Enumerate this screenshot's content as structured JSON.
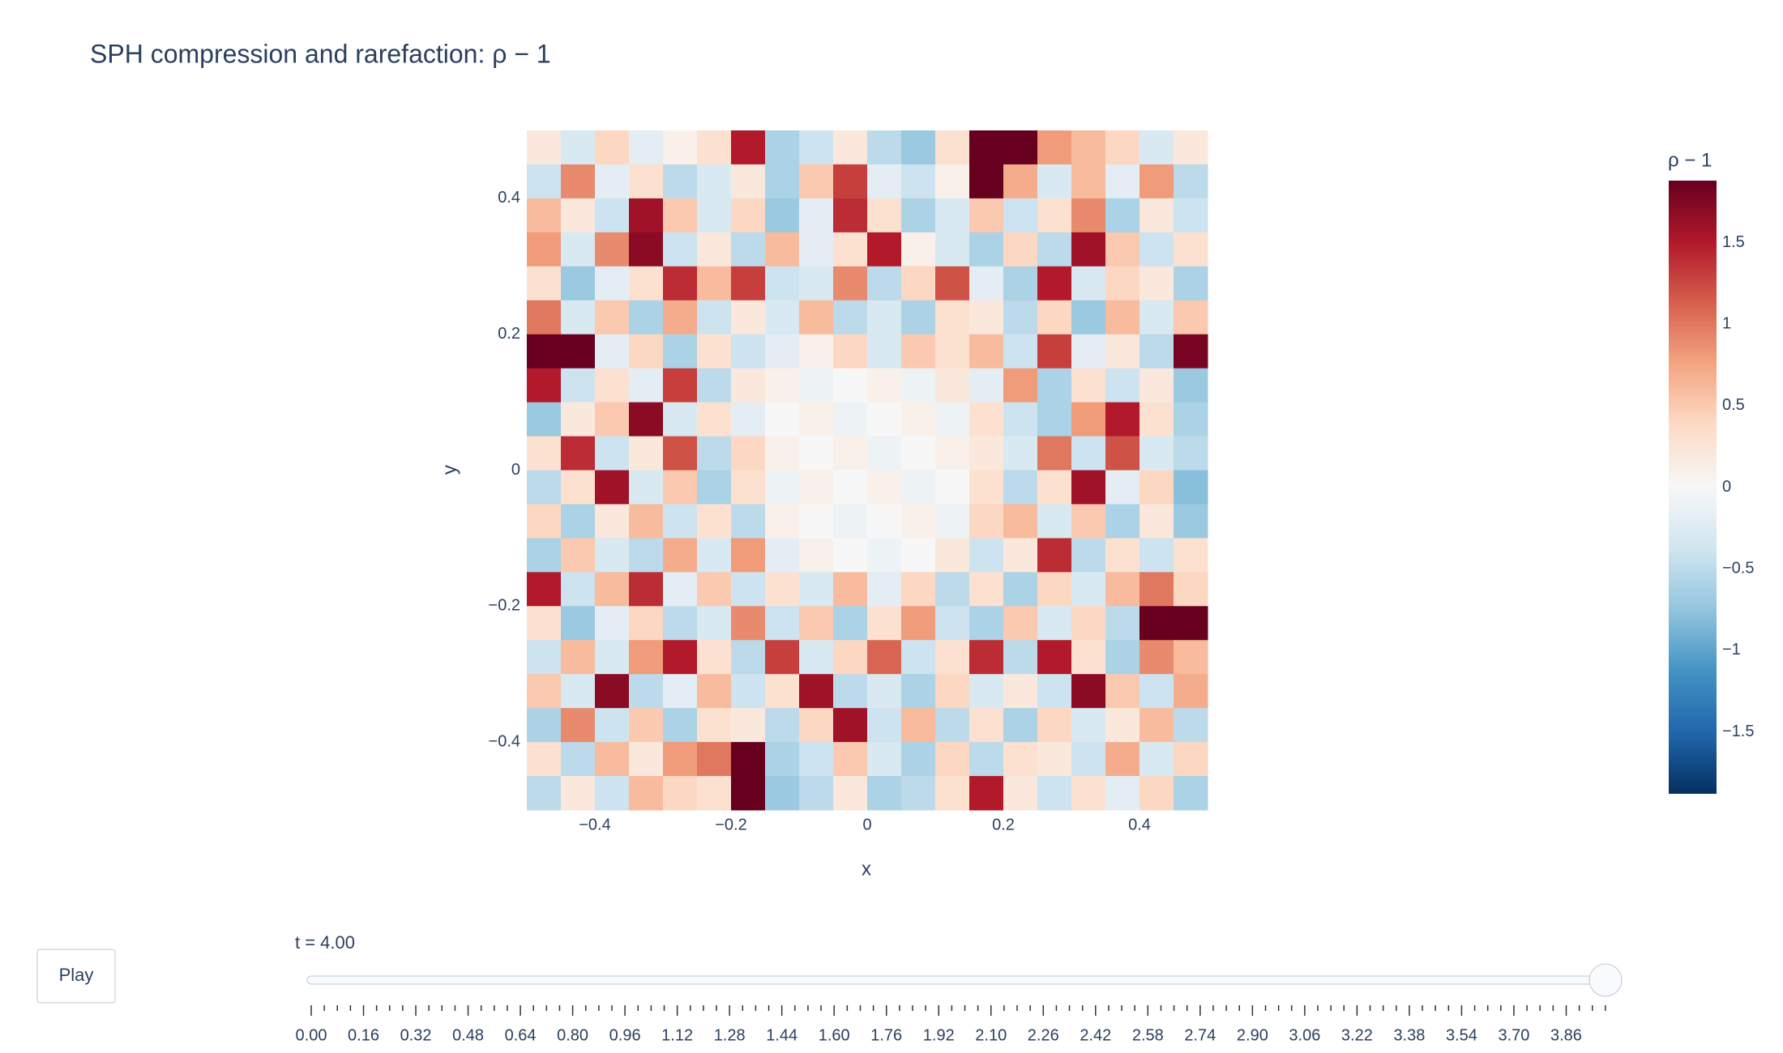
{
  "chart_data": {
    "type": "heatmap",
    "title": "SPH compression and rarefaction: ρ − 1",
    "x_label": "x",
    "y_label": "y",
    "colorbar_title": "ρ − 1",
    "xlim": [
      -0.5,
      0.5
    ],
    "ylim": [
      -0.5,
      0.5
    ],
    "zlim": [
      -1.88,
      1.88
    ],
    "xticks": [
      {
        "value": -0.4,
        "label": "−0.4"
      },
      {
        "value": -0.2,
        "label": "−0.2"
      },
      0,
      0.2,
      0.4
    ],
    "yticks": [
      {
        "value": -0.4,
        "label": "−0.4"
      },
      {
        "value": -0.2,
        "label": "−0.2"
      },
      0,
      0.2,
      0.4
    ],
    "zticks": [
      {
        "value": -1.5,
        "label": "−1.5"
      },
      {
        "value": -1,
        "label": "−1"
      },
      {
        "value": -0.5,
        "label": "−0.5"
      },
      0,
      0.5,
      1,
      1.5
    ],
    "colorscale": [
      "rgb(5,48,97)",
      "rgb(33,102,172)",
      "rgb(67,147,195)",
      "rgb(146,197,222)",
      "rgb(209,229,240)",
      "rgb(247,247,247)",
      "rgb(253,219,199)",
      "rgb(244,165,130)",
      "rgb(214,96,77)",
      "rgb(178,24,43)",
      "rgb(103,0,31)"
    ],
    "z": [
      [
        0.2,
        -0.3,
        0.4,
        -0.2,
        0.1,
        0.3,
        1.5,
        -0.6,
        -0.4,
        0.2,
        -0.5,
        -0.7,
        0.3,
        1.9,
        1.9,
        0.8,
        0.6,
        0.4,
        -0.3,
        0.2
      ],
      [
        -0.4,
        0.9,
        -0.2,
        0.3,
        -0.5,
        -0.3,
        0.2,
        -0.6,
        0.5,
        1.3,
        -0.2,
        -0.4,
        0.1,
        1.9,
        0.7,
        -0.3,
        0.6,
        -0.2,
        0.8,
        -0.5
      ],
      [
        0.6,
        0.2,
        -0.4,
        1.6,
        0.5,
        -0.3,
        0.4,
        -0.7,
        -0.2,
        1.4,
        0.3,
        -0.6,
        -0.3,
        0.5,
        -0.4,
        0.3,
        0.9,
        -0.6,
        0.2,
        -0.4
      ],
      [
        0.8,
        -0.3,
        0.9,
        1.7,
        -0.4,
        0.2,
        -0.5,
        0.6,
        -0.2,
        0.3,
        1.5,
        0.1,
        -0.3,
        -0.6,
        0.4,
        -0.5,
        1.6,
        0.5,
        -0.4,
        0.3
      ],
      [
        0.3,
        -0.7,
        -0.2,
        0.3,
        1.4,
        0.6,
        1.3,
        -0.4,
        -0.3,
        0.9,
        -0.5,
        0.4,
        1.2,
        -0.2,
        -0.6,
        1.5,
        -0.3,
        0.4,
        0.2,
        -0.6
      ],
      [
        1.0,
        -0.3,
        0.5,
        -0.6,
        0.7,
        -0.4,
        0.2,
        -0.3,
        0.6,
        -0.5,
        -0.3,
        -0.6,
        0.3,
        0.2,
        -0.5,
        0.4,
        -0.7,
        0.6,
        -0.3,
        0.5
      ],
      [
        1.9,
        1.9,
        -0.2,
        0.4,
        -0.6,
        0.3,
        -0.4,
        -0.2,
        0.1,
        0.4,
        -0.3,
        0.5,
        0.3,
        0.6,
        -0.4,
        1.3,
        -0.2,
        0.2,
        -0.5,
        1.8
      ],
      [
        1.5,
        -0.4,
        0.3,
        -0.2,
        1.3,
        -0.5,
        0.2,
        0.1,
        -0.1,
        0.0,
        0.1,
        -0.1,
        0.2,
        -0.2,
        0.8,
        -0.6,
        0.3,
        -0.4,
        0.2,
        -0.7
      ],
      [
        -0.7,
        0.2,
        0.5,
        1.7,
        -0.3,
        0.3,
        -0.2,
        0.0,
        0.1,
        -0.1,
        0.0,
        0.1,
        -0.1,
        0.3,
        -0.4,
        -0.6,
        0.8,
        1.5,
        0.3,
        -0.6
      ],
      [
        0.3,
        1.4,
        -0.4,
        0.2,
        1.2,
        -0.5,
        0.4,
        0.1,
        0.0,
        0.1,
        -0.1,
        0.0,
        0.1,
        0.2,
        -0.3,
        1.0,
        -0.4,
        1.2,
        -0.3,
        -0.5
      ],
      [
        -0.5,
        0.3,
        1.6,
        -0.3,
        0.5,
        -0.6,
        0.3,
        -0.1,
        0.1,
        0.0,
        0.1,
        -0.1,
        0.0,
        0.3,
        -0.5,
        0.3,
        1.6,
        -0.2,
        0.4,
        -0.8
      ],
      [
        0.4,
        -0.6,
        0.2,
        0.6,
        -0.4,
        0.3,
        -0.5,
        0.1,
        0.0,
        -0.1,
        0.0,
        0.1,
        -0.1,
        0.4,
        0.6,
        -0.3,
        0.5,
        -0.6,
        0.2,
        -0.7
      ],
      [
        -0.6,
        0.5,
        -0.3,
        -0.5,
        0.7,
        -0.3,
        0.8,
        -0.2,
        0.1,
        0.0,
        -0.1,
        0.0,
        0.2,
        -0.4,
        0.2,
        1.4,
        -0.5,
        0.3,
        -0.4,
        0.3
      ],
      [
        1.5,
        -0.4,
        0.6,
        1.4,
        -0.2,
        0.5,
        -0.4,
        0.3,
        -0.3,
        0.6,
        -0.2,
        0.4,
        -0.5,
        0.3,
        -0.6,
        0.4,
        -0.3,
        0.6,
        1.0,
        0.4
      ],
      [
        0.3,
        -0.7,
        -0.2,
        0.4,
        -0.5,
        -0.3,
        0.9,
        -0.4,
        0.5,
        -0.6,
        0.3,
        0.8,
        -0.4,
        -0.6,
        0.5,
        -0.3,
        0.4,
        -0.5,
        1.9,
        1.9
      ],
      [
        -0.4,
        0.6,
        -0.3,
        0.8,
        1.5,
        0.3,
        -0.5,
        1.3,
        -0.3,
        0.4,
        1.1,
        -0.4,
        0.3,
        1.4,
        -0.5,
        1.5,
        0.3,
        -0.6,
        0.9,
        0.6
      ],
      [
        0.5,
        -0.3,
        1.7,
        -0.5,
        -0.2,
        0.6,
        -0.4,
        0.3,
        1.6,
        -0.5,
        -0.3,
        -0.6,
        0.4,
        -0.3,
        0.2,
        -0.4,
        1.7,
        0.5,
        -0.4,
        0.7
      ],
      [
        -0.6,
        0.9,
        -0.4,
        0.5,
        -0.6,
        0.3,
        0.2,
        -0.5,
        0.4,
        1.6,
        -0.4,
        0.6,
        -0.5,
        0.3,
        -0.6,
        0.4,
        -0.3,
        0.2,
        0.6,
        -0.5
      ],
      [
        0.3,
        -0.5,
        0.6,
        0.2,
        0.8,
        1.0,
        1.9,
        -0.6,
        -0.4,
        0.5,
        -0.3,
        -0.6,
        0.4,
        -0.5,
        0.3,
        0.2,
        -0.4,
        0.7,
        -0.3,
        0.4
      ],
      [
        -0.5,
        0.2,
        -0.4,
        0.6,
        0.4,
        0.3,
        1.9,
        -0.7,
        -0.5,
        0.2,
        -0.6,
        -0.5,
        0.3,
        1.5,
        0.2,
        -0.4,
        0.3,
        -0.2,
        0.4,
        -0.6
      ]
    ]
  },
  "controls": {
    "play_button": "Play",
    "slider_current": "t = 4.00",
    "slider_labels": [
      "0.00",
      "0.16",
      "0.32",
      "0.48",
      "0.64",
      "0.80",
      "0.96",
      "1.12",
      "1.28",
      "1.44",
      "1.60",
      "1.76",
      "1.92",
      "2.10",
      "2.26",
      "2.42",
      "2.58",
      "2.74",
      "2.90",
      "3.06",
      "3.22",
      "3.38",
      "3.54",
      "3.70",
      "3.86"
    ]
  }
}
